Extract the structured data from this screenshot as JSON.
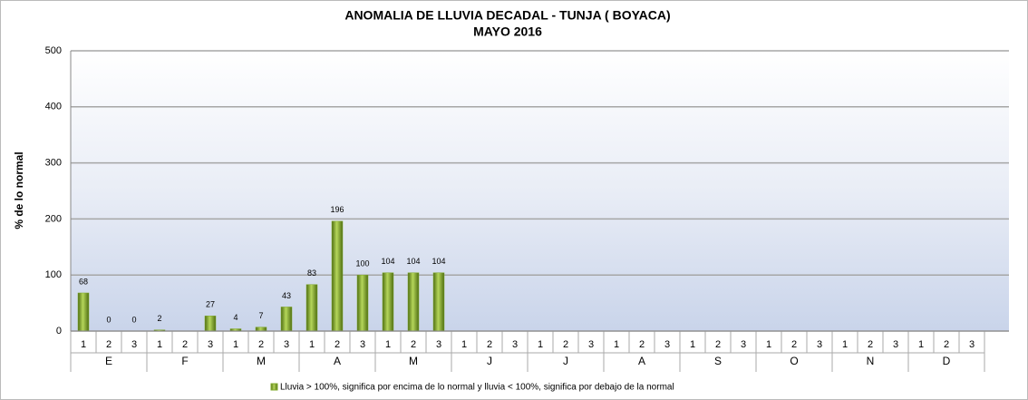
{
  "chart_data": {
    "type": "bar",
    "title": "ANOMALIA DE LLUVIA DECADAL - TUNJA  ( BOYACA)",
    "subtitle": "MAYO 2016",
    "y_label": "% de lo normal",
    "categories": [
      "1",
      "2",
      "3",
      "1",
      "2",
      "3",
      "1",
      "2",
      "3",
      "1",
      "2",
      "3",
      "1",
      "2",
      "3",
      "1",
      "2",
      "3",
      "1",
      "2",
      "3",
      "1",
      "2",
      "3",
      "1",
      "2",
      "3",
      "1",
      "2",
      "3",
      "1",
      "2",
      "3",
      "1",
      "2",
      "3"
    ],
    "group_labels": [
      "E",
      "F",
      "M",
      "A",
      "M",
      "J",
      "J",
      "A",
      "S",
      "O",
      "N",
      "D"
    ],
    "series": [
      {
        "name": "Lluvia > 100%, significa por encima de lo normal y lluvia < 100%, significa por debajo de la normal",
        "color": "#7fa82a",
        "values": [
          68,
          0,
          0,
          2,
          null,
          27,
          4,
          7,
          43,
          83,
          196,
          100,
          104,
          104,
          104,
          null,
          null,
          null,
          null,
          null,
          null,
          null,
          null,
          null,
          null,
          null,
          null,
          null,
          null,
          null,
          null,
          null,
          null,
          null,
          null,
          null
        ]
      }
    ],
    "ylim": [
      0,
      500
    ],
    "yticks": [
      0,
      100,
      200,
      300,
      400,
      500
    ],
    "grid": true,
    "legend": "bottom"
  }
}
